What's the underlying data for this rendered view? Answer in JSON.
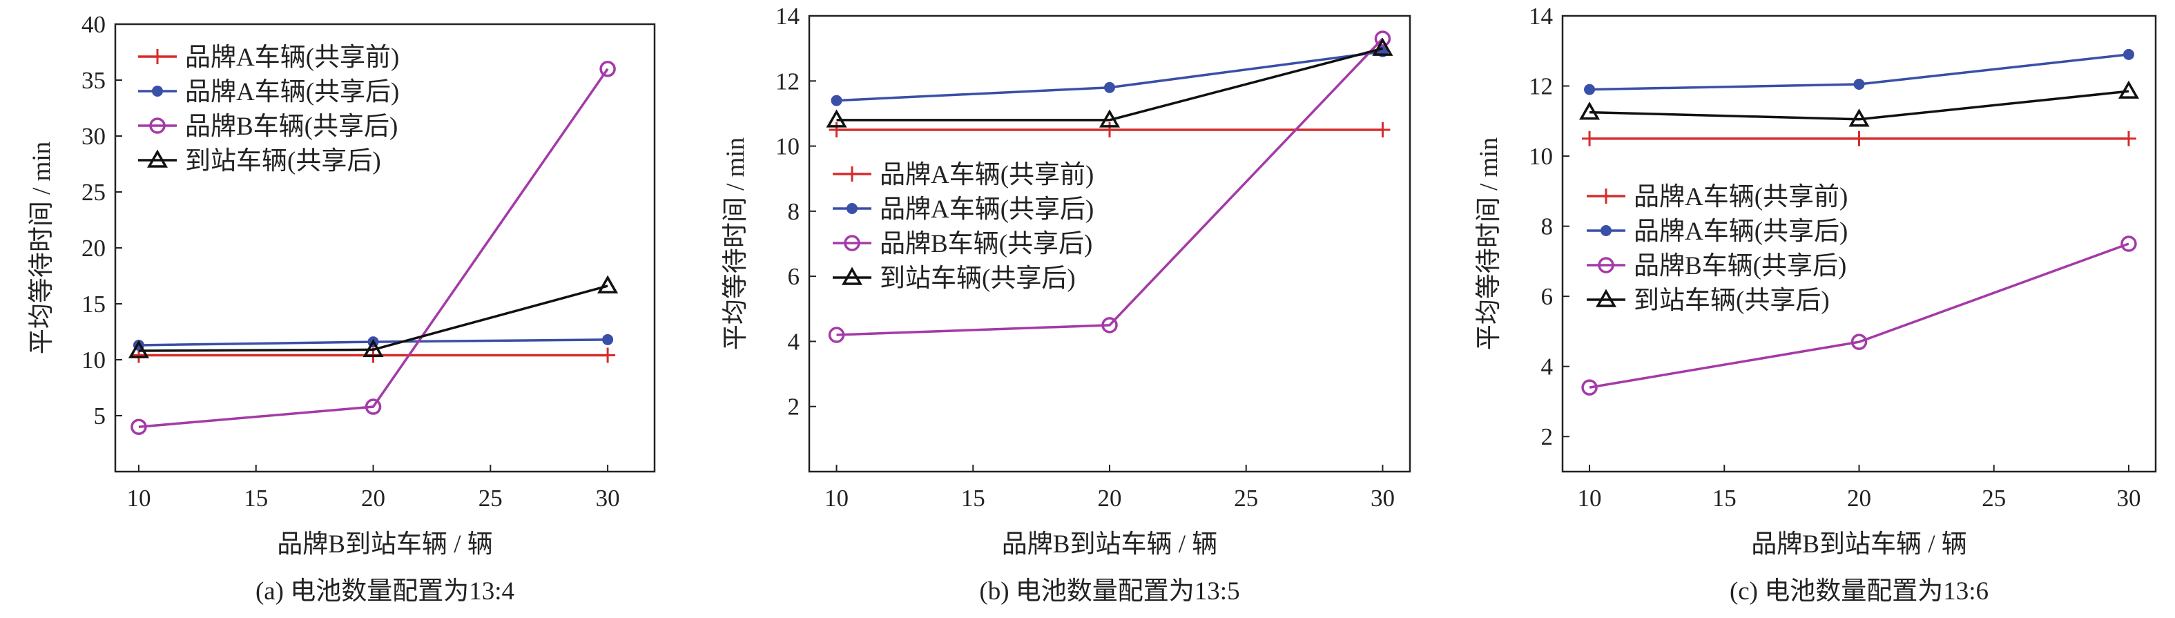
{
  "colors": {
    "brand_a_before": "#d62b2b",
    "brand_a_after": "#3a4fa8",
    "brand_b_after": "#a43aa8",
    "arrival_after": "#111111"
  },
  "chart_data": [
    {
      "type": "line",
      "caption": "(a) 电池数量配置为13:4",
      "xlabel": "品牌B到站车辆 / 辆",
      "ylabel": "平均等待时间 / min",
      "xlim": [
        9,
        32
      ],
      "ylim": [
        0,
        40
      ],
      "xticks": [
        10,
        15,
        20,
        25,
        30
      ],
      "yticks": [
        5,
        10,
        15,
        20,
        25,
        30,
        35,
        40
      ],
      "x": [
        10,
        20,
        30
      ],
      "legend_position": "upper-left",
      "grid": false,
      "series": [
        {
          "name": "品牌A车辆(共享前)",
          "marker": "plus",
          "color": "#d62b2b",
          "values": [
            10.4,
            10.4,
            10.4
          ]
        },
        {
          "name": "品牌A车辆(共享后)",
          "marker": "dot",
          "color": "#3a4fa8",
          "values": [
            11.3,
            11.6,
            11.8
          ]
        },
        {
          "name": "品牌B车辆(共享后)",
          "marker": "circle",
          "color": "#a43aa8",
          "values": [
            4.0,
            5.8,
            36.0
          ]
        },
        {
          "name": "到站车辆(共享后)",
          "marker": "triangle",
          "color": "#111111",
          "values": [
            10.8,
            10.9,
            16.6
          ]
        }
      ]
    },
    {
      "type": "line",
      "caption": "(b) 电池数量配置为13:5",
      "xlabel": "品牌B到站车辆 / 辆",
      "ylabel": "平均等待时间 / min",
      "xlim": [
        9,
        31
      ],
      "ylim": [
        0,
        14
      ],
      "xticks": [
        10,
        15,
        20,
        25,
        30
      ],
      "yticks": [
        2,
        4,
        6,
        8,
        10,
        12,
        14
      ],
      "x": [
        10,
        20,
        30
      ],
      "legend_position": "center-left",
      "grid": false,
      "series": [
        {
          "name": "品牌A车辆(共享前)",
          "marker": "plus",
          "color": "#d62b2b",
          "values": [
            10.5,
            10.5,
            10.5
          ]
        },
        {
          "name": "品牌A车辆(共享后)",
          "marker": "dot",
          "color": "#3a4fa8",
          "values": [
            11.4,
            11.8,
            12.9
          ]
        },
        {
          "name": "品牌B车辆(共享后)",
          "marker": "circle",
          "color": "#a43aa8",
          "values": [
            4.2,
            4.5,
            13.3
          ]
        },
        {
          "name": "到站车辆(共享后)",
          "marker": "triangle",
          "color": "#111111",
          "values": [
            10.8,
            10.8,
            13.0
          ]
        }
      ]
    },
    {
      "type": "line",
      "caption": "(c) 电池数量配置为13:6",
      "xlabel": "品牌B到站车辆 / 辆",
      "ylabel": "平均等待时间 / min",
      "xlim": [
        9,
        31
      ],
      "ylim": [
        1,
        14
      ],
      "xticks": [
        10,
        15,
        20,
        25,
        30
      ],
      "yticks": [
        2,
        4,
        6,
        8,
        10,
        12,
        14
      ],
      "x": [
        10,
        20,
        30
      ],
      "legend_position": "center-left",
      "grid": false,
      "series": [
        {
          "name": "品牌A车辆(共享前)",
          "marker": "plus",
          "color": "#d62b2b",
          "values": [
            10.5,
            10.5,
            10.5
          ]
        },
        {
          "name": "品牌A车辆(共享后)",
          "marker": "dot",
          "color": "#3a4fa8",
          "values": [
            11.9,
            12.05,
            12.9
          ]
        },
        {
          "name": "品牌B车辆(共享后)",
          "marker": "circle",
          "color": "#a43aa8",
          "values": [
            3.4,
            4.7,
            7.5
          ]
        },
        {
          "name": "到站车辆(共享后)",
          "marker": "triangle",
          "color": "#111111",
          "values": [
            11.25,
            11.05,
            11.85
          ]
        }
      ]
    }
  ]
}
